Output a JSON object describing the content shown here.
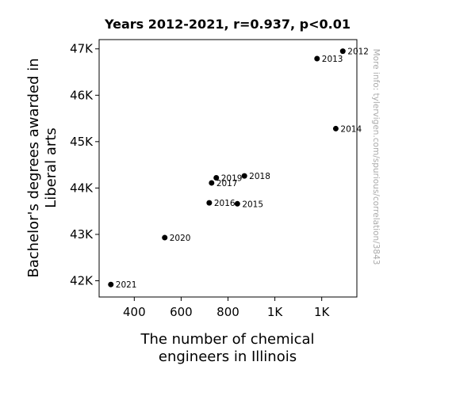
{
  "chart_data": {
    "type": "scatter",
    "title": "Years 2012-2021, r=0.937, p<0.01",
    "xlabel": [
      "The number of chemical",
      "engineers in Illinois"
    ],
    "ylabel": [
      "Bachelor's degrees awarded in",
      "Liberal arts"
    ],
    "xlim": [
      250,
      1350
    ],
    "ylim": [
      41650,
      47200
    ],
    "x_ticks": [
      {
        "value": 400,
        "label": "400"
      },
      {
        "value": 600,
        "label": "600"
      },
      {
        "value": 800,
        "label": "800"
      },
      {
        "value": 1000,
        "label": "1K"
      },
      {
        "value": 1200,
        "label": "1K"
      }
    ],
    "y_ticks": [
      {
        "value": 42000,
        "label": "42K"
      },
      {
        "value": 43000,
        "label": "43K"
      },
      {
        "value": 44000,
        "label": "44K"
      },
      {
        "value": 45000,
        "label": "45K"
      },
      {
        "value": 46000,
        "label": "46K"
      },
      {
        "value": 47000,
        "label": "47K"
      }
    ],
    "points": [
      {
        "x": 1290,
        "y": 46950,
        "label": "2012"
      },
      {
        "x": 1180,
        "y": 46790,
        "label": "2013"
      },
      {
        "x": 1260,
        "y": 45280,
        "label": "2014"
      },
      {
        "x": 840,
        "y": 43660,
        "label": "2015"
      },
      {
        "x": 720,
        "y": 43680,
        "label": "2016"
      },
      {
        "x": 730,
        "y": 44110,
        "label": "2017"
      },
      {
        "x": 870,
        "y": 44260,
        "label": "2018"
      },
      {
        "x": 750,
        "y": 44220,
        "label": "2019"
      },
      {
        "x": 530,
        "y": 42930,
        "label": "2020"
      },
      {
        "x": 300,
        "y": 41920,
        "label": "2021"
      }
    ],
    "marker_color": "#000000",
    "grid": false,
    "watermark": "More info: tylervigen.com/spurious/correlation/3843"
  }
}
